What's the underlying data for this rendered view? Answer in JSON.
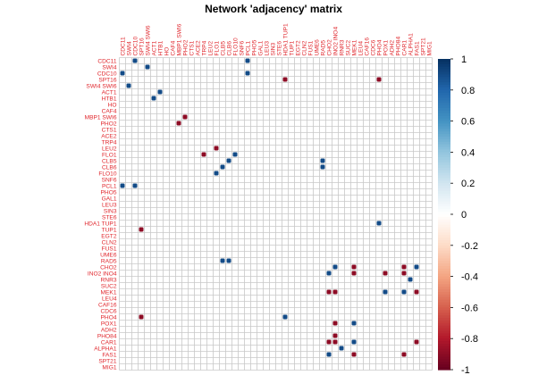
{
  "chart_data": {
    "type": "heatmap",
    "title": "Network 'adjacency' matrix",
    "labels": [
      "CDC11",
      "SWI4",
      "CDC10",
      "SPT16",
      "SWI4_SWI6",
      "ACT1",
      "HTB1",
      "HO",
      "CAF4",
      "MBP1_SWI6",
      "PHO2",
      "CTS1",
      "ACE2",
      "TRP4",
      "LEU2",
      "FLO1",
      "CLB5",
      "CLB6",
      "FLO10",
      "SNF6",
      "PCL1",
      "PHO5",
      "GAL1",
      "LEU3",
      "SIN3",
      "STE6",
      "HDA1_TUP1",
      "TUP1",
      "EGT2",
      "CLN2",
      "FUS1",
      "UME6",
      "RAD5",
      "CHO2",
      "INO2_INO4",
      "RNR3",
      "SUC2",
      "MEK1",
      "LEU4",
      "CAF16",
      "CDC6",
      "PHO4",
      "POX1",
      "ADH2",
      "PHO84",
      "CAR1",
      "ALPHA1",
      "FAS1",
      "SPT21",
      "MIG1"
    ],
    "cells": [
      {
        "row": 0,
        "col": 2,
        "value": 0.9
      },
      {
        "row": 0,
        "col": 20,
        "value": 0.9
      },
      {
        "row": 1,
        "col": 4,
        "value": 0.9
      },
      {
        "row": 2,
        "col": 0,
        "value": 0.9
      },
      {
        "row": 2,
        "col": 20,
        "value": 0.9
      },
      {
        "row": 3,
        "col": 26,
        "value": -0.9
      },
      {
        "row": 3,
        "col": 41,
        "value": -0.9
      },
      {
        "row": 4,
        "col": 1,
        "value": 0.9
      },
      {
        "row": 5,
        "col": 6,
        "value": 0.9
      },
      {
        "row": 6,
        "col": 5,
        "value": 0.9
      },
      {
        "row": 9,
        "col": 10,
        "value": -0.9
      },
      {
        "row": 10,
        "col": 9,
        "value": -0.9
      },
      {
        "row": 14,
        "col": 15,
        "value": -0.9
      },
      {
        "row": 15,
        "col": 13,
        "value": -0.9
      },
      {
        "row": 15,
        "col": 18,
        "value": 0.9
      },
      {
        "row": 16,
        "col": 17,
        "value": 0.9
      },
      {
        "row": 16,
        "col": 32,
        "value": 0.9
      },
      {
        "row": 17,
        "col": 16,
        "value": 0.9
      },
      {
        "row": 17,
        "col": 32,
        "value": 0.9
      },
      {
        "row": 18,
        "col": 15,
        "value": 0.9
      },
      {
        "row": 20,
        "col": 0,
        "value": 0.9
      },
      {
        "row": 20,
        "col": 2,
        "value": 0.9
      },
      {
        "row": 26,
        "col": 41,
        "value": 0.9
      },
      {
        "row": 27,
        "col": 3,
        "value": -0.9
      },
      {
        "row": 32,
        "col": 16,
        "value": 0.9
      },
      {
        "row": 32,
        "col": 17,
        "value": 0.9
      },
      {
        "row": 33,
        "col": 34,
        "value": 0.9
      },
      {
        "row": 33,
        "col": 37,
        "value": -0.9
      },
      {
        "row": 33,
        "col": 45,
        "value": -0.9
      },
      {
        "row": 33,
        "col": 47,
        "value": 0.9
      },
      {
        "row": 34,
        "col": 33,
        "value": 0.9
      },
      {
        "row": 34,
        "col": 37,
        "value": -0.9
      },
      {
        "row": 34,
        "col": 42,
        "value": -0.9
      },
      {
        "row": 34,
        "col": 45,
        "value": -0.9
      },
      {
        "row": 35,
        "col": 46,
        "value": 0.9
      },
      {
        "row": 37,
        "col": 33,
        "value": -0.9
      },
      {
        "row": 37,
        "col": 34,
        "value": -0.9
      },
      {
        "row": 37,
        "col": 42,
        "value": 0.9
      },
      {
        "row": 37,
        "col": 45,
        "value": 0.9
      },
      {
        "row": 37,
        "col": 47,
        "value": -0.9
      },
      {
        "row": 41,
        "col": 3,
        "value": -0.9
      },
      {
        "row": 41,
        "col": 26,
        "value": 0.9
      },
      {
        "row": 42,
        "col": 34,
        "value": -0.9
      },
      {
        "row": 42,
        "col": 37,
        "value": 0.9
      },
      {
        "row": 44,
        "col": 34,
        "value": -0.9
      },
      {
        "row": 45,
        "col": 33,
        "value": -0.9
      },
      {
        "row": 45,
        "col": 34,
        "value": -0.9
      },
      {
        "row": 45,
        "col": 37,
        "value": 0.9
      },
      {
        "row": 45,
        "col": 47,
        "value": -0.9
      },
      {
        "row": 46,
        "col": 35,
        "value": 0.9
      },
      {
        "row": 47,
        "col": 33,
        "value": 0.9
      },
      {
        "row": 47,
        "col": 37,
        "value": -0.9
      },
      {
        "row": 47,
        "col": 45,
        "value": -0.9
      }
    ],
    "colorbar": {
      "ticks": [
        "1",
        "0.8",
        "0.6",
        "0.4",
        "0.2",
        "0",
        "-0.2",
        "-0.4",
        "-0.6",
        "-0.8",
        "-1"
      ],
      "range": [
        -1,
        1
      ],
      "colors": [
        "#67001F",
        "#B2182B",
        "#D6604D",
        "#F4A582",
        "#FDDBC7",
        "#FFFFFF",
        "#D1E5F0",
        "#92C5DE",
        "#4393C3",
        "#2166AC",
        "#053061"
      ]
    },
    "label_color": "#e0262c",
    "grid": true
  }
}
